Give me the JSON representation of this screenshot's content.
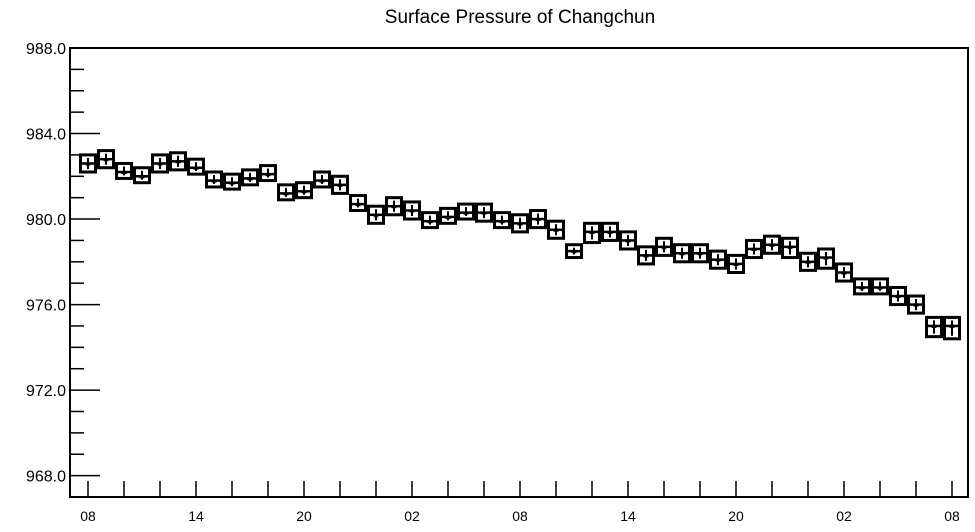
{
  "chart_data": {
    "type": "box",
    "title": "Surface Pressure of Changchun",
    "xlabel": "",
    "ylabel": "",
    "ylim": [
      967,
      988
    ],
    "y_ticks": [
      968,
      972,
      976,
      980,
      984,
      988
    ],
    "y_tick_labels": [
      "968.0",
      "972.0",
      "976.0",
      "980.0",
      "984.0",
      "988.0"
    ],
    "x_tick_labels": [
      {
        "index": 0,
        "label": "08"
      },
      {
        "index": 6,
        "label": "14"
      },
      {
        "index": 12,
        "label": "20"
      },
      {
        "index": 18,
        "label": "02"
      },
      {
        "index": 24,
        "label": "08"
      },
      {
        "index": 30,
        "label": "14"
      },
      {
        "index": 36,
        "label": "20"
      },
      {
        "index": 42,
        "label": "02"
      },
      {
        "index": 48,
        "label": "08"
      }
    ],
    "grid": false,
    "series": [
      {
        "median": [
          982.6,
          982.8,
          982.2,
          982.0,
          982.6,
          982.7,
          982.4,
          981.8,
          981.7,
          981.9,
          982.1,
          981.2,
          981.3,
          981.8,
          981.6,
          980.7,
          980.2,
          980.6,
          980.4,
          979.9,
          980.1,
          980.3,
          980.3,
          979.9,
          979.8,
          980.0,
          979.5,
          978.5,
          979.4,
          979.4,
          979.0,
          978.3,
          978.7,
          978.4,
          978.4,
          978.1,
          977.9,
          978.6,
          978.8,
          978.7,
          978.0,
          978.2,
          977.5,
          976.8,
          976.8,
          976.4,
          976.0,
          975.0,
          975.0
        ],
        "box_low": [
          982.2,
          982.4,
          981.9,
          981.7,
          982.2,
          982.3,
          982.1,
          981.5,
          981.4,
          981.6,
          981.8,
          980.9,
          981.0,
          981.5,
          981.2,
          980.4,
          979.8,
          980.2,
          980.0,
          979.6,
          979.8,
          980.0,
          979.9,
          979.6,
          979.4,
          979.6,
          979.1,
          978.2,
          978.9,
          979.0,
          978.6,
          977.9,
          978.3,
          978.0,
          978.0,
          977.7,
          977.5,
          978.2,
          978.4,
          978.2,
          977.6,
          977.7,
          977.1,
          976.5,
          976.5,
          976.0,
          975.6,
          974.5,
          974.4
        ],
        "box_high": [
          983.0,
          983.2,
          982.6,
          982.4,
          983.0,
          983.1,
          982.8,
          982.2,
          982.1,
          982.3,
          982.5,
          981.6,
          981.7,
          982.2,
          982.0,
          981.1,
          980.6,
          981.0,
          980.8,
          980.3,
          980.5,
          980.7,
          980.7,
          980.3,
          980.2,
          980.4,
          979.9,
          978.8,
          979.8,
          979.8,
          979.4,
          978.7,
          979.1,
          978.8,
          978.8,
          978.5,
          978.3,
          979.0,
          979.2,
          979.1,
          978.4,
          978.6,
          977.9,
          977.2,
          977.2,
          976.8,
          976.4,
          975.4,
          975.4
        ]
      }
    ]
  }
}
